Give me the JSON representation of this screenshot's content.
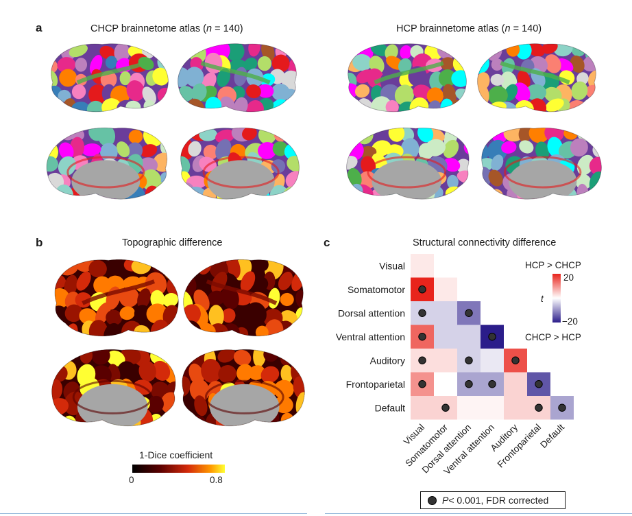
{
  "panels": {
    "a": {
      "letter": "a",
      "left_title_pre": "CHCP brainnetome atlas (",
      "left_title_n": "n",
      "left_title_post": " = 140)",
      "right_title_pre": "HCP brainnetome atlas (",
      "right_title_n": "n",
      "right_title_post": " = 140)"
    },
    "b": {
      "letter": "b",
      "title": "Topographic difference",
      "colorbar_title": "1-Dice coefficient",
      "colorbar_min": "0",
      "colorbar_max": "0.8"
    },
    "c": {
      "letter": "c",
      "title": "Structural connectivity difference",
      "colorbar_top_label": "HCP > CHCP",
      "colorbar_bottom_label": "CHCP > HCP",
      "colorbar_max": "20",
      "colorbar_min": "−20",
      "colorbar_axis": "t",
      "legend_p": "P",
      "legend_text": " < 0.001, FDR corrected"
    }
  },
  "colors": {
    "positive": "#e8241c",
    "negative": "#2b1d8a",
    "neutral": "#ffffff",
    "significance_dot": "#333333",
    "cortex_gray": "#a6a6a6"
  },
  "chart_data": {
    "type": "heatmap",
    "title": "Structural connectivity difference",
    "networks": [
      "Visual",
      "Somatomotor",
      "Dorsal attention",
      "Ventral attention",
      "Auditory",
      "Frontoparietal",
      "Default"
    ],
    "value_label": "t",
    "value_range": [
      -20,
      20
    ],
    "matrix_lower_triangle": [
      [
        2
      ],
      [
        20,
        2
      ],
      [
        -4,
        -4,
        -12
      ],
      [
        14,
        -4,
        -4,
        -20
      ],
      [
        3,
        3,
        -4,
        -2,
        16
      ],
      [
        10,
        0,
        -8,
        -8,
        4,
        -15
      ],
      [
        4,
        4,
        1,
        1,
        4,
        4,
        -8
      ]
    ],
    "significant": [
      [
        false
      ],
      [
        true,
        false
      ],
      [
        true,
        false,
        true
      ],
      [
        true,
        false,
        false,
        true
      ],
      [
        true,
        false,
        true,
        false,
        true
      ],
      [
        true,
        false,
        true,
        true,
        false,
        true
      ],
      [
        false,
        true,
        false,
        false,
        false,
        true,
        true
      ]
    ]
  }
}
